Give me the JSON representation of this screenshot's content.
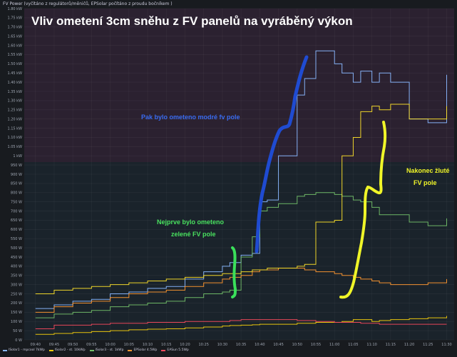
{
  "panel": {
    "title": "FV Power (vyčítáno z regulátorů/měničů, EPSolar počítáno z proudu bočníkem )"
  },
  "annotations": {
    "headline": "Vliv ometení 3cm sněhu z FV panelů na vyráběný výkon",
    "blue_note": "Pak bylo ometeno modré fv pole",
    "green_note_1": "Nejprve bylo ometeno",
    "green_note_2": "zelené FV pole",
    "yellow_note_1": "Nakonec žluté",
    "yellow_note_2": "FV pole"
  },
  "chart_data": {
    "type": "line",
    "title": "FV Power (vyčítáno z regulátorů/měničů, EPSolar počítáno z proudu bočníkem )",
    "xlabel": "",
    "ylabel": "",
    "x_ticks": [
      "09:40",
      "09:45",
      "09:50",
      "09:55",
      "10:00",
      "10:05",
      "10:10",
      "10:15",
      "10:20",
      "10:25",
      "10:30",
      "10:35",
      "10:40",
      "10:45",
      "10:50",
      "10:55",
      "11:00",
      "11:05",
      "11:10",
      "11:15",
      "11:20",
      "11:25",
      "11:30"
    ],
    "y_ticks": [
      "0 W",
      "50 W",
      "100 W",
      "150 W",
      "200 W",
      "250 W",
      "300 W",
      "350 W",
      "400 W",
      "450 W",
      "500 W",
      "550 W",
      "600 W",
      "650 W",
      "700 W",
      "750 W",
      "800 W",
      "850 W",
      "900 W",
      "950 W",
      "1 kW",
      "1.05 kW",
      "1.10 kW",
      "1.15 kW",
      "1.20 kW",
      "1.25 kW",
      "1.30 kW",
      "1.35 kW",
      "1.40 kW",
      "1.45 kW",
      "1.50 kW",
      "1.55 kW",
      "1.60 kW",
      "1.65 kW",
      "1.70 kW",
      "1.75 kW",
      "1.80 kW"
    ],
    "x_unit": "minutes",
    "x": [
      580,
      585,
      590,
      595,
      600,
      605,
      610,
      615,
      620,
      625,
      630,
      632,
      635,
      638,
      640,
      642,
      645,
      650,
      652,
      655,
      660,
      662,
      665,
      667,
      670,
      672,
      675,
      680,
      685,
      690
    ],
    "ylim": [
      0,
      1800
    ],
    "grid": true,
    "legend_position": "bottom",
    "series": [
      {
        "name": "ISolar1 - mpcool 7kWp",
        "color": "#8ab8ff",
        "values": [
          170,
          190,
          210,
          220,
          250,
          260,
          280,
          290,
          330,
          370,
          400,
          420,
          460,
          470,
          750,
          760,
          1000,
          1330,
          1420,
          1570,
          1500,
          1450,
          1400,
          1460,
          1400,
          1450,
          1400,
          1200,
          1180,
          1440
        ]
      },
      {
        "name": "ISolar2 - st. 10kWp",
        "color": "#f2cc0c",
        "values": [
          30,
          35,
          40,
          45,
          50,
          55,
          58,
          60,
          65,
          70,
          75,
          78,
          80,
          82,
          85,
          85,
          85,
          90,
          90,
          95,
          95,
          100,
          110,
          110,
          100,
          105,
          110,
          115,
          120,
          130
        ]
      },
      {
        "name": "ISolar3 - st. 1kWp",
        "color": "#73bf69",
        "values": [
          120,
          140,
          150,
          160,
          180,
          190,
          200,
          210,
          230,
          250,
          260,
          270,
          450,
          560,
          700,
          720,
          740,
          780,
          790,
          800,
          790,
          780,
          760,
          750,
          720,
          680,
          680,
          640,
          620,
          660
        ]
      },
      {
        "name": "EPSolar 4.5Wp",
        "color": "#ff9830",
        "values": [
          150,
          180,
          200,
          210,
          230,
          250,
          260,
          270,
          290,
          310,
          330,
          340,
          350,
          370,
          380,
          380,
          390,
          390,
          380,
          370,
          360,
          350,
          340,
          330,
          320,
          310,
          300,
          300,
          310,
          330
        ]
      },
      {
        "name": "EASun 5.5Wp",
        "color": "#f2495c",
        "values": [
          60,
          80,
          80,
          85,
          90,
          90,
          95,
          95,
          100,
          100,
          100,
          105,
          110,
          110,
          110,
          110,
          110,
          105,
          105,
          100,
          95,
          95,
          95,
          90,
          90,
          85,
          85,
          85,
          85,
          85
        ]
      },
      {
        "name": "",
        "color": "#fade2a",
        "values": [
          250,
          270,
          280,
          290,
          300,
          310,
          320,
          330,
          340,
          350,
          360,
          360,
          370,
          380,
          380,
          390,
          390,
          400,
          410,
          640,
          650,
          1000,
          1100,
          1240,
          1270,
          1250,
          1280,
          1200,
          1200,
          1270
        ]
      }
    ]
  }
}
